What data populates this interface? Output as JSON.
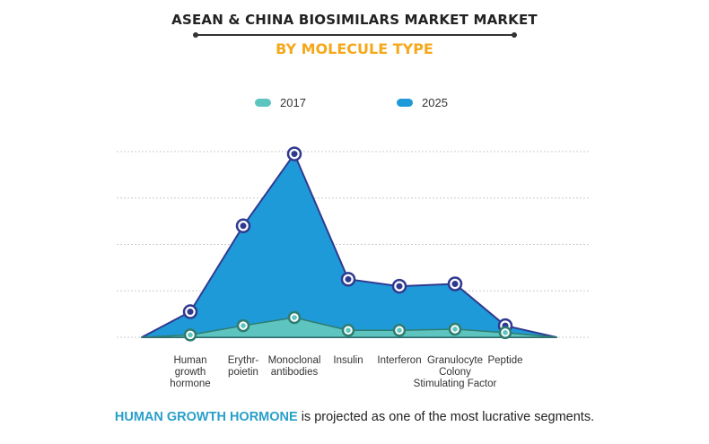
{
  "title": "ASEAN & CHINA BIOSIMILARS MARKET MARKET",
  "subtitle": "BY MOLECULE TYPE",
  "footer": {
    "highlight": "HUMAN GROWTH HORMONE",
    "rest": " is projected as one of the most lucrative segments."
  },
  "colors": {
    "fill_2017": "#5ec4c0",
    "stroke_2017": "#2e7d6f",
    "fill_2025": "#1f9ad9",
    "stroke_2025": "#2f3a8f",
    "grid": "#cccccc",
    "highlight": "#2a9fc9",
    "subtitle": "#f4a81b"
  },
  "chart_data": {
    "type": "area",
    "categories": [
      [
        "Human",
        "growth",
        "hormone"
      ],
      [
        "Erythr-",
        "poietin"
      ],
      [
        "Monoclonal",
        "antibodies"
      ],
      [
        "Insulin"
      ],
      [
        "Interferon"
      ],
      [
        "Granulocyte",
        "Colony",
        "Stimulating Factor"
      ],
      [
        "Peptide"
      ]
    ],
    "series": [
      {
        "name": "2017",
        "values": [
          0.1,
          0.5,
          0.85,
          0.3,
          0.3,
          0.35,
          0.2
        ]
      },
      {
        "name": "2025",
        "values": [
          1.1,
          4.8,
          7.9,
          2.5,
          2.2,
          2.3,
          0.5
        ]
      }
    ],
    "ylim": [
      0,
      8
    ],
    "grid": true,
    "legend_position": "top"
  }
}
